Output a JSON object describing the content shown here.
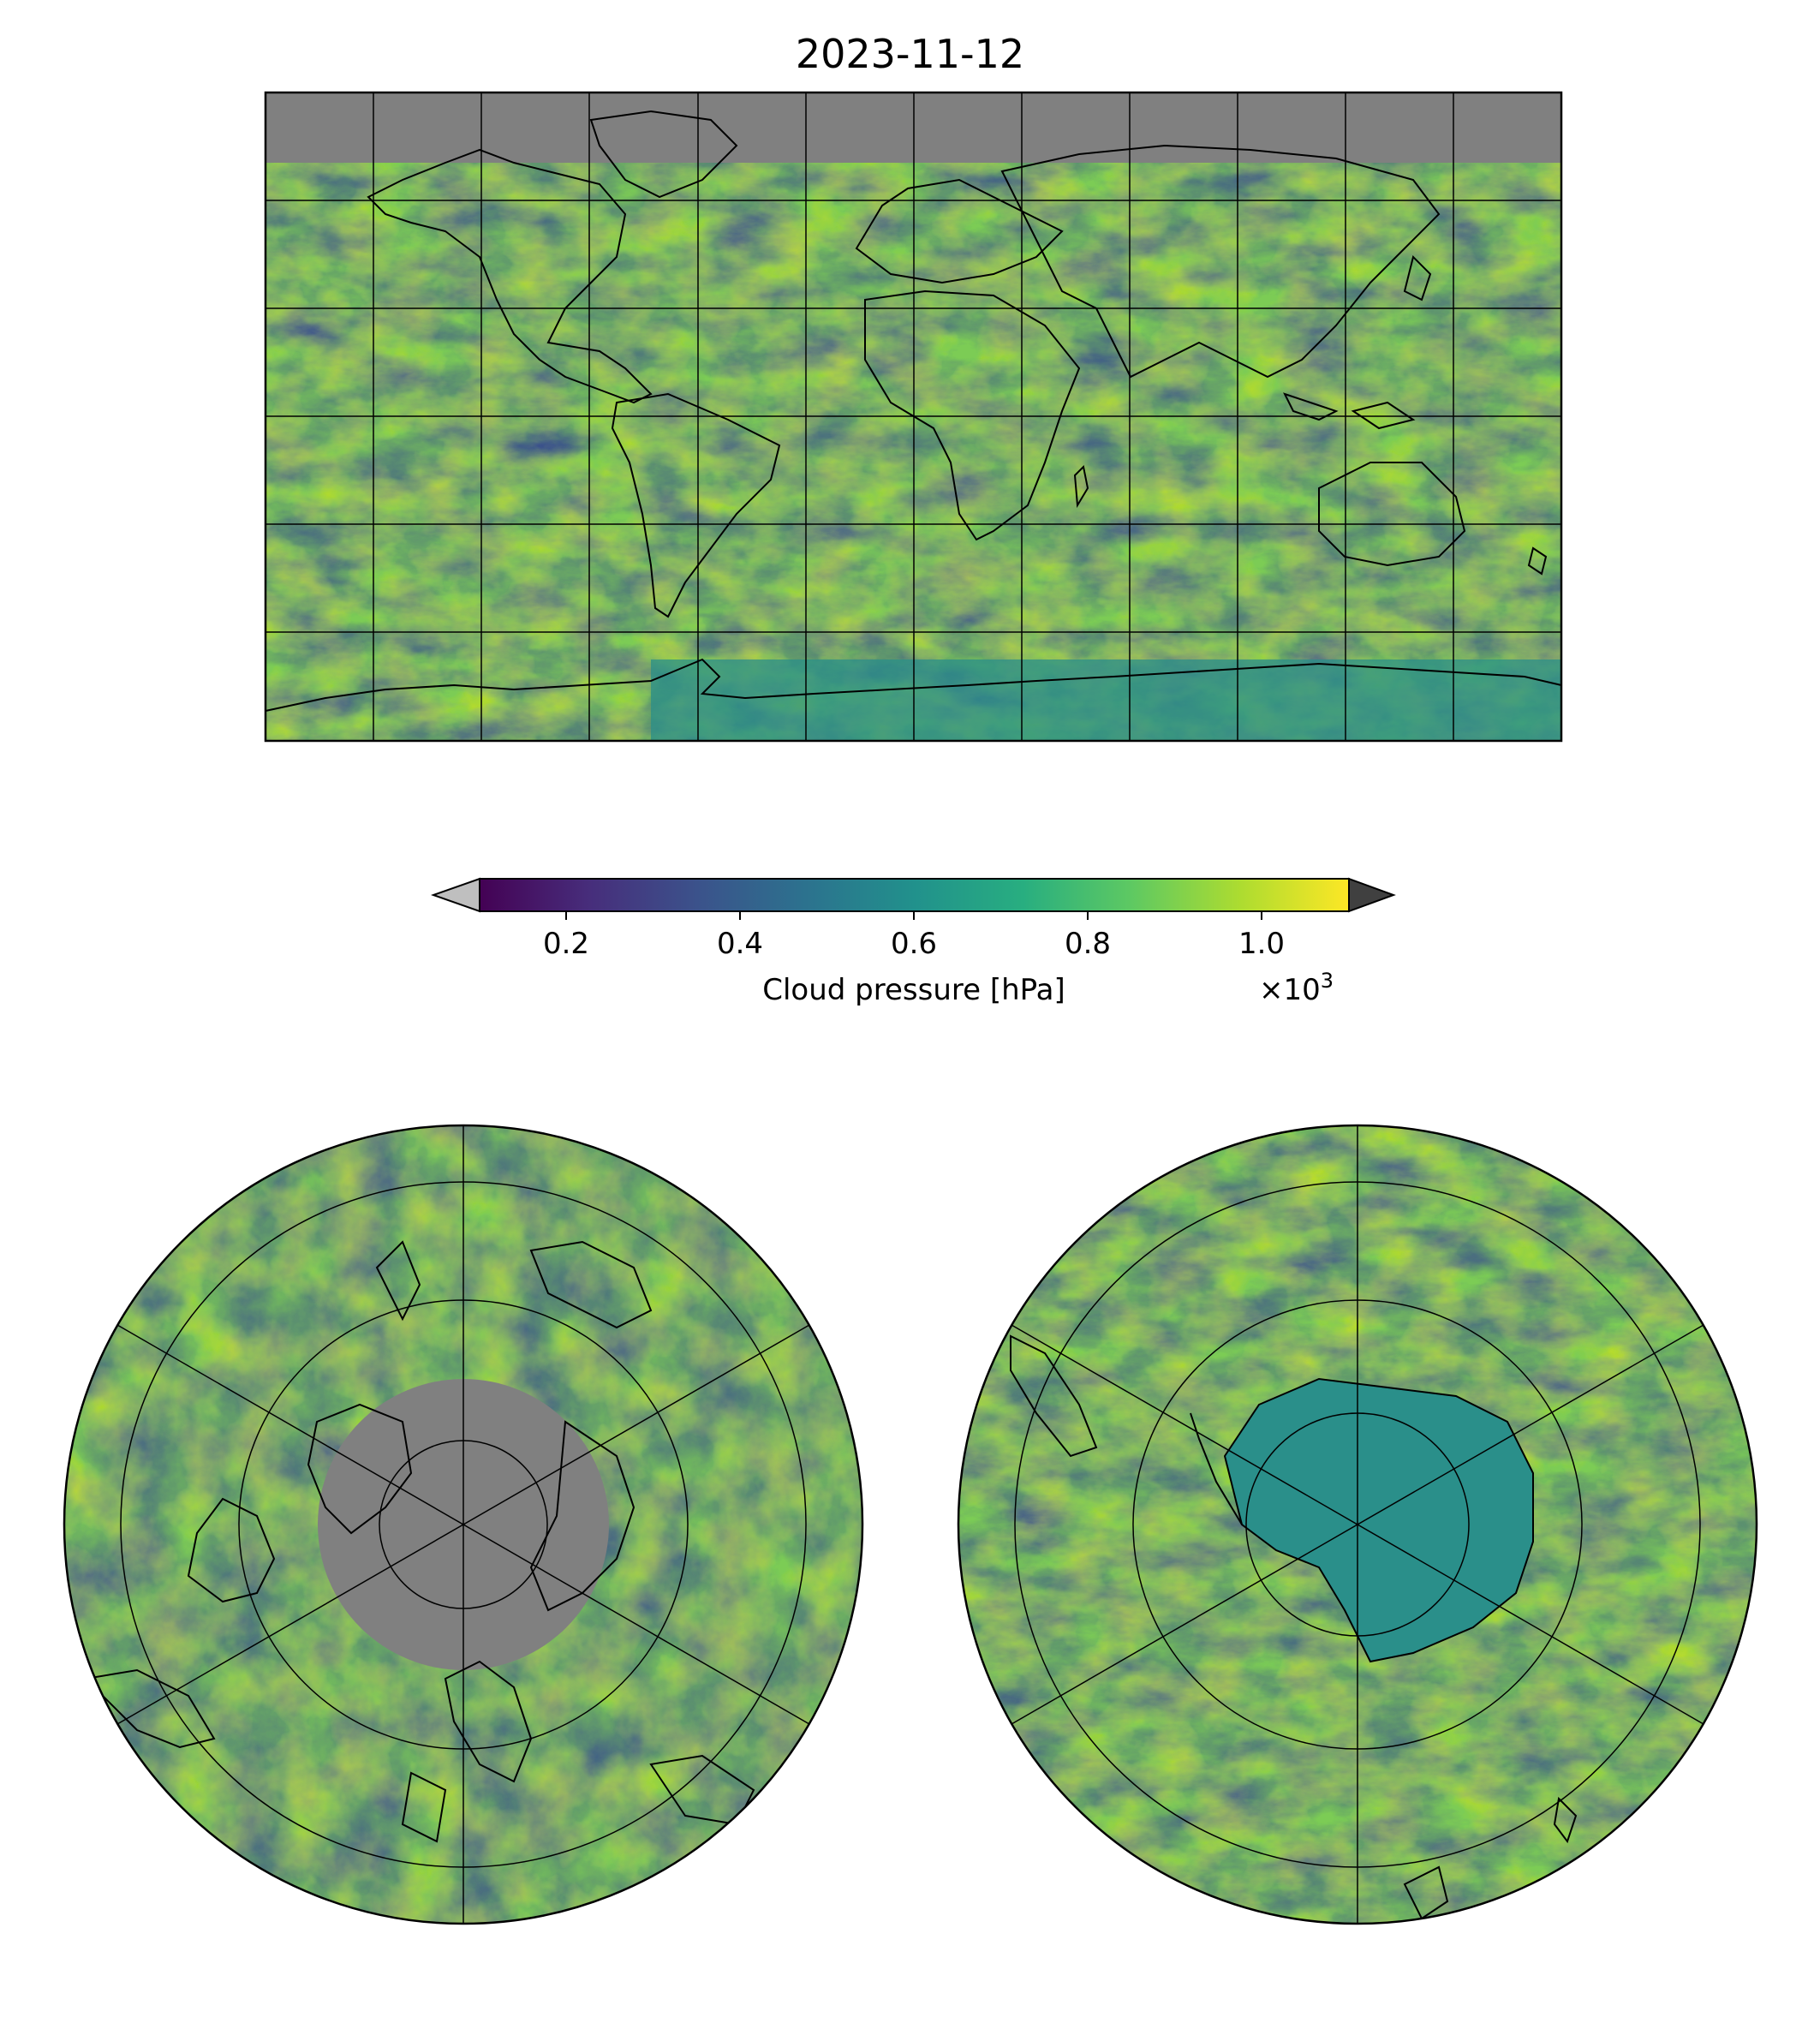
{
  "title": "2023-11-12",
  "colorbar": {
    "label": "Cloud pressure [hPa]",
    "ticks": [
      "0.2",
      "0.4",
      "0.6",
      "0.8",
      "1.0"
    ],
    "tick_values": [
      0.2,
      0.4,
      0.6,
      0.8,
      1.0
    ],
    "range": [
      0.1,
      1.1
    ],
    "multiplier_base": "×10",
    "multiplier_exp": "3",
    "extend": "both",
    "colormap": "viridis",
    "over_color": "#404040",
    "under_color": "#bfbfbf"
  },
  "panels": [
    {
      "name": "global",
      "projection": "PlateCarree",
      "nodata_color": "#808080"
    },
    {
      "name": "north-polar",
      "projection": "NorthPolarStereo",
      "nodata_color": "#808080"
    },
    {
      "name": "south-polar",
      "projection": "SouthPolarStereo",
      "nodata_color": "#808080"
    }
  ]
}
